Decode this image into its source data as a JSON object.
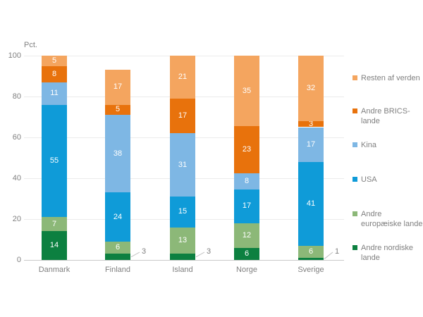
{
  "chart_data": {
    "type": "bar",
    "stacked": true,
    "unit_label": "Pct.",
    "categories": [
      "Danmark",
      "Finland",
      "Island",
      "Norge",
      "Sverige"
    ],
    "series": [
      {
        "name": "Andre nordiske lande",
        "color": "#0c8040",
        "values": [
          14,
          3,
          3,
          6,
          1
        ]
      },
      {
        "name": "Andre europæiske lande",
        "color": "#8cb878",
        "values": [
          7,
          6,
          13,
          12,
          6
        ]
      },
      {
        "name": "USA",
        "color": "#0f9bd8",
        "values": [
          55,
          24,
          15,
          17,
          41
        ]
      },
      {
        "name": "Kina",
        "color": "#7eb7e4",
        "values": [
          11,
          38,
          31,
          8,
          17
        ]
      },
      {
        "name": "Andre BRICS-lande",
        "color": "#e8720c",
        "values": [
          8,
          5,
          17,
          23,
          3
        ]
      },
      {
        "name": "Resten af verden",
        "color": "#f4a55f",
        "values": [
          5,
          17,
          21,
          35,
          32
        ]
      }
    ],
    "y_axis": {
      "ticks": [
        0,
        20,
        40,
        60,
        80,
        100
      ],
      "max": 100,
      "grid": true
    },
    "legend_position": "right",
    "legend_order": [
      "Resten af verden",
      "Andre BRICS-lande",
      "Kina",
      "USA",
      "Andre europæiske lande",
      "Andre nordiske lande"
    ],
    "outside_labels": [
      {
        "category": "Finland",
        "series": "Andre nordiske lande",
        "value": 3
      },
      {
        "category": "Island",
        "series": "Andre nordiske lande",
        "value": 3
      },
      {
        "category": "Sverige",
        "series": "Andre nordiske lande",
        "value": 1
      }
    ],
    "colors": {
      "axis_text": "#808080",
      "gridline": "#ebebeb",
      "baseline": "#c9c9c9",
      "leader_line": "#c0c0c0",
      "segment_label": "#ffffff"
    }
  }
}
